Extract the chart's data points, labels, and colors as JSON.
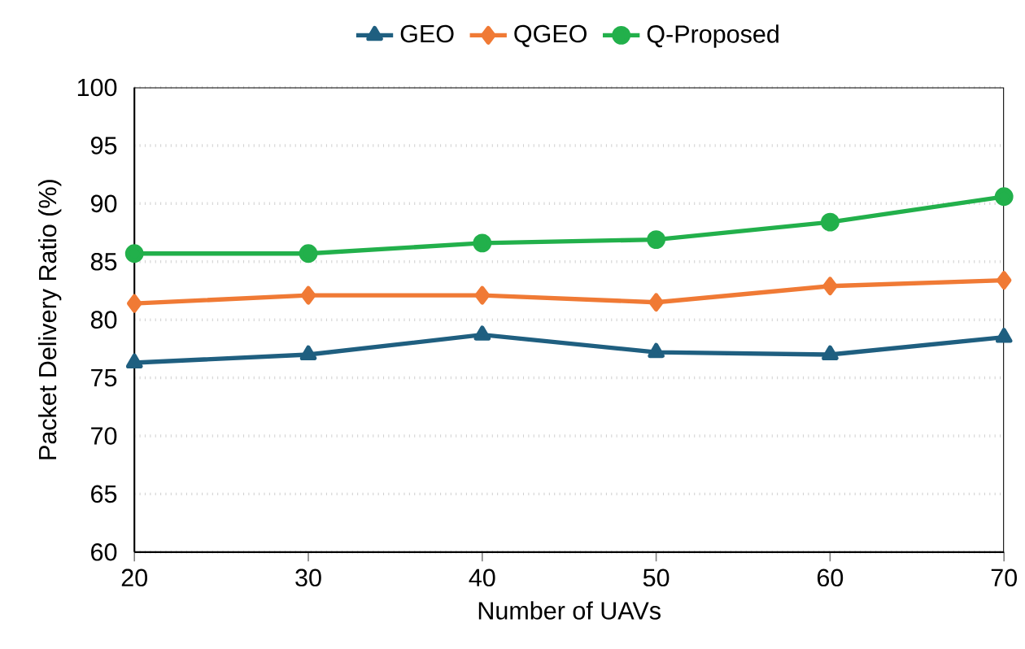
{
  "chart_data": {
    "type": "line",
    "xlabel": "Number of UAVs",
    "ylabel": "Packet Delivery Ratio (%)",
    "x": [
      20,
      30,
      40,
      50,
      60,
      70
    ],
    "series": [
      {
        "name": "GEO",
        "color": "#1f5f80",
        "marker": "triangle",
        "values": [
          76.3,
          77.0,
          78.7,
          77.2,
          77.0,
          78.5
        ]
      },
      {
        "name": "QGEO",
        "color": "#f07a35",
        "marker": "diamond",
        "values": [
          81.4,
          82.1,
          82.1,
          81.5,
          82.9,
          83.4
        ]
      },
      {
        "name": "Q-Proposed",
        "color": "#22b04b",
        "marker": "circle",
        "values": [
          85.7,
          85.7,
          86.6,
          86.9,
          88.4,
          90.6
        ]
      }
    ],
    "xlim": [
      20,
      70
    ],
    "xticks": [
      20,
      30,
      40,
      50,
      60,
      70
    ],
    "ylim": [
      60,
      100
    ],
    "yticks": [
      60,
      65,
      70,
      75,
      80,
      85,
      90,
      95,
      100
    ],
    "grid": "y",
    "legend": "top",
    "line_style": "solid"
  }
}
